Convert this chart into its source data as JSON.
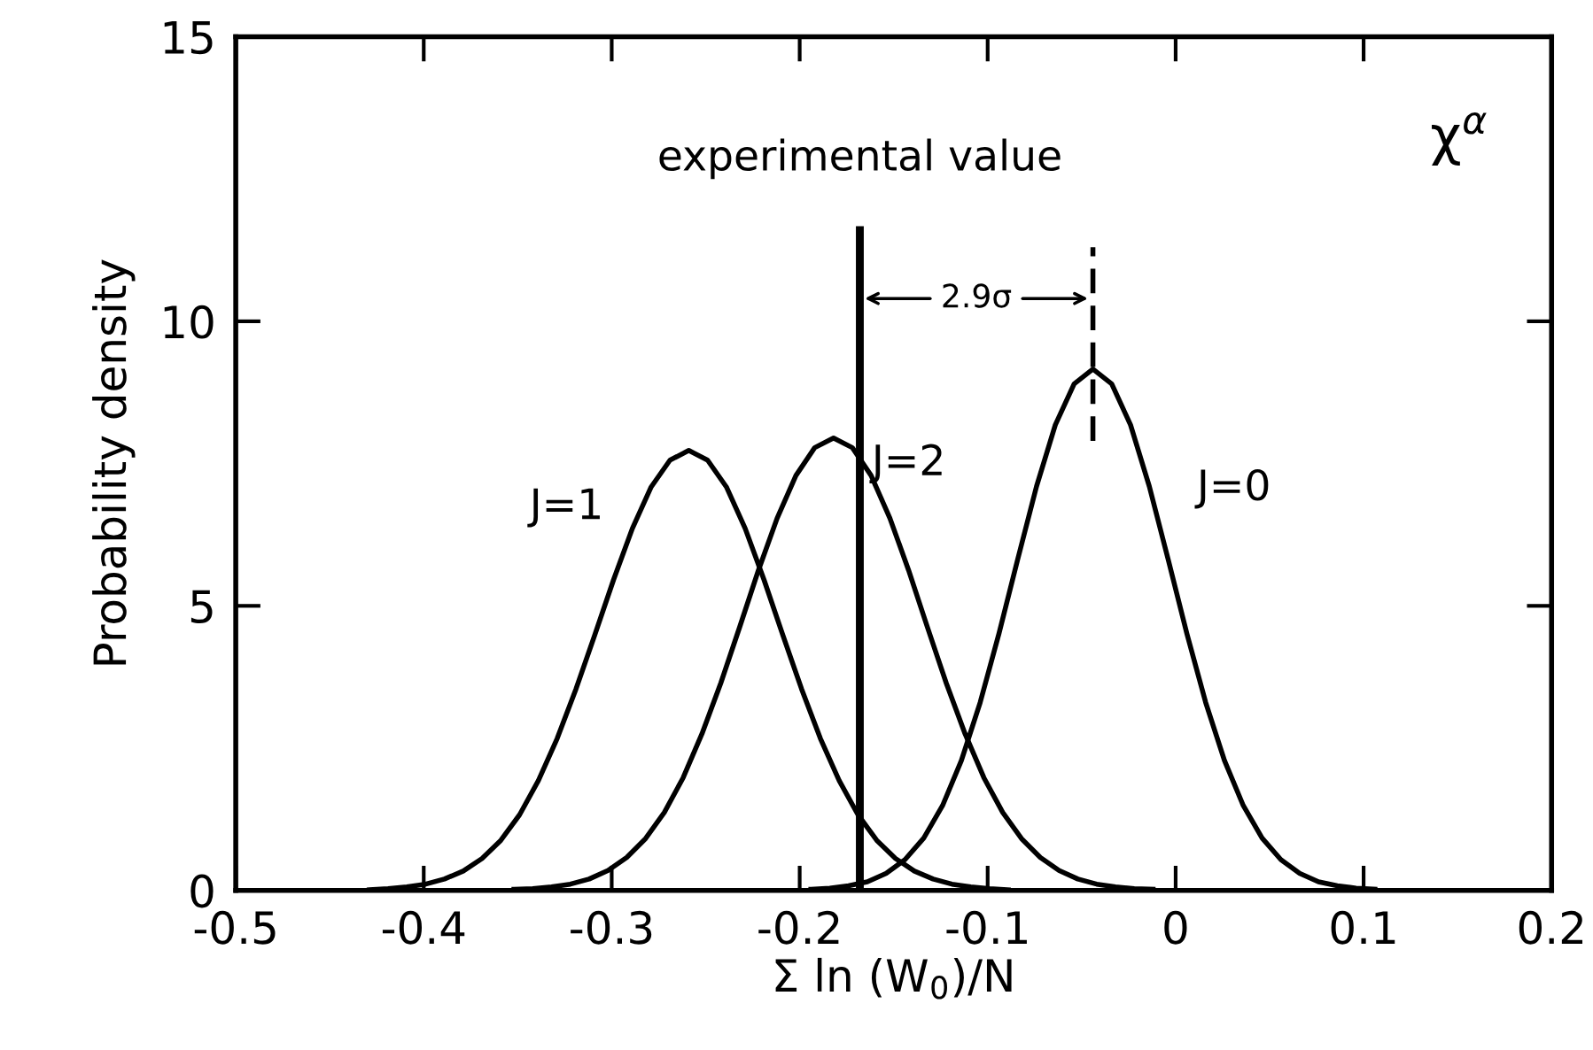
{
  "chart_data": {
    "type": "line",
    "xlabel": "Σ ln (W$_{0}$)/N",
    "ylabel": "Probability density",
    "xlim": [
      -0.5,
      0.2
    ],
    "ylim": [
      0,
      15
    ],
    "xticks": [
      -0.5,
      -0.4,
      -0.3,
      -0.2,
      -0.1,
      0,
      0.1,
      0.2
    ],
    "yticks": [
      0,
      5,
      10,
      15
    ],
    "grid": false,
    "marker": "none",
    "series": [
      {
        "name": "J=1",
        "color": "#000000",
        "x": [
          -0.429,
          -0.419,
          -0.409,
          -0.399,
          -0.389,
          -0.379,
          -0.369,
          -0.359,
          -0.349,
          -0.339,
          -0.329,
          -0.319,
          -0.309,
          -0.299,
          -0.289,
          -0.279,
          -0.269,
          -0.259,
          -0.249,
          -0.239,
          -0.229,
          -0.219,
          -0.209,
          -0.199,
          -0.189,
          -0.179,
          -0.169,
          -0.159,
          -0.149,
          -0.139,
          -0.129,
          -0.119,
          -0.109,
          -0.099,
          -0.089
        ],
        "values": [
          0.01,
          0.03,
          0.06,
          0.11,
          0.2,
          0.34,
          0.56,
          0.88,
          1.33,
          1.93,
          2.67,
          3.54,
          4.49,
          5.46,
          6.36,
          7.09,
          7.56,
          7.73,
          7.56,
          7.09,
          6.36,
          5.46,
          4.49,
          3.54,
          2.67,
          1.93,
          1.33,
          0.88,
          0.56,
          0.34,
          0.2,
          0.11,
          0.06,
          0.03,
          0.01
        ]
      },
      {
        "name": "J=2",
        "color": "#000000",
        "x": [
          -0.352,
          -0.342,
          -0.332,
          -0.322,
          -0.312,
          -0.302,
          -0.292,
          -0.282,
          -0.272,
          -0.262,
          -0.252,
          -0.242,
          -0.232,
          -0.222,
          -0.212,
          -0.202,
          -0.192,
          -0.182,
          -0.172,
          -0.162,
          -0.152,
          -0.142,
          -0.132,
          -0.122,
          -0.112,
          -0.102,
          -0.092,
          -0.082,
          -0.072,
          -0.062,
          -0.052,
          -0.042,
          -0.032,
          -0.022,
          -0.012
        ],
        "values": [
          0.02,
          0.03,
          0.06,
          0.11,
          0.2,
          0.35,
          0.58,
          0.91,
          1.37,
          1.98,
          2.75,
          3.64,
          4.62,
          5.62,
          6.54,
          7.29,
          7.78,
          7.95,
          7.78,
          7.29,
          6.54,
          5.62,
          4.62,
          3.64,
          2.75,
          1.98,
          1.37,
          0.91,
          0.58,
          0.35,
          0.2,
          0.11,
          0.06,
          0.03,
          0.02
        ]
      },
      {
        "name": "J=0",
        "color": "#000000",
        "x": [
          -0.194,
          -0.184,
          -0.174,
          -0.164,
          -0.154,
          -0.144,
          -0.134,
          -0.124,
          -0.114,
          -0.104,
          -0.094,
          -0.084,
          -0.074,
          -0.064,
          -0.054,
          -0.044,
          -0.034,
          -0.024,
          -0.014,
          -0.004,
          0.006,
          0.016,
          0.026,
          0.036,
          0.046,
          0.056,
          0.066,
          0.076,
          0.086,
          0.096,
          0.106
        ],
        "values": [
          0.02,
          0.04,
          0.08,
          0.15,
          0.3,
          0.54,
          0.92,
          1.49,
          2.28,
          3.3,
          4.51,
          5.82,
          7.1,
          8.18,
          8.9,
          9.16,
          8.9,
          8.18,
          7.1,
          5.82,
          4.51,
          3.3,
          2.28,
          1.49,
          0.92,
          0.54,
          0.3,
          0.15,
          0.08,
          0.04,
          0.02
        ]
      },
      {
        "name": "experimental value",
        "color": "#000000",
        "x": [
          -0.168,
          -0.168
        ],
        "values": [
          0,
          11.6
        ]
      },
      {
        "color": "#000000",
        "line_style": "dashed",
        "x": [
          -0.044,
          -0.044
        ],
        "values": [
          7.9,
          11.3
        ]
      }
    ],
    "annotations": [
      {
        "text": "2.9σ",
        "x": -0.106,
        "y": 10.4
      },
      "χ$^{α}$"
    ]
  }
}
